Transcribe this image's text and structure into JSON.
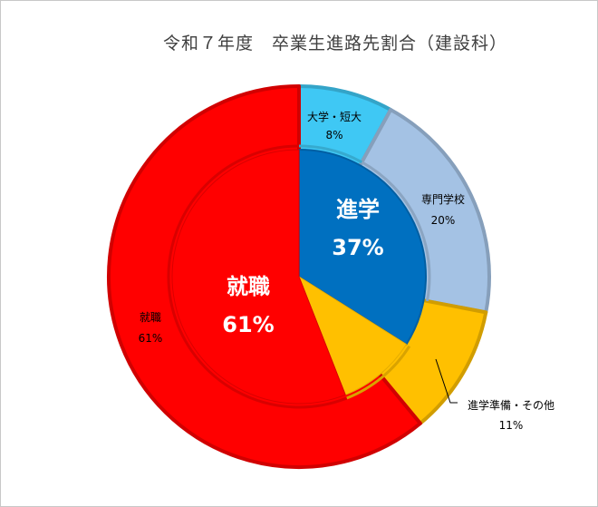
{
  "chart_data": {
    "type": "pie",
    "title": "令和７年度　卒業生進路先割合（建設科）",
    "inner_ring": [
      {
        "name": "進学",
        "percent_label": "37%",
        "value": 37,
        "color": "#0070c0"
      },
      {
        "name": "就職",
        "percent_label": "61%",
        "value": 61,
        "color": "#ff0000"
      }
    ],
    "outer_ring": [
      {
        "name": "大学・短大",
        "percent_label": "8%",
        "value": 8,
        "color": "#3fc8f4"
      },
      {
        "name": "専門学校",
        "percent_label": "20%",
        "value": 20,
        "color": "#a4c2e4"
      },
      {
        "name": "進学準備・その他",
        "percent_label": "11%",
        "value": 11,
        "color": "#ffc000"
      },
      {
        "name": "就職",
        "percent_label": "61%",
        "value": 61,
        "color": "#ff0000"
      }
    ],
    "yellow_slice": {
      "value": 11,
      "color": "#ffc000"
    }
  }
}
